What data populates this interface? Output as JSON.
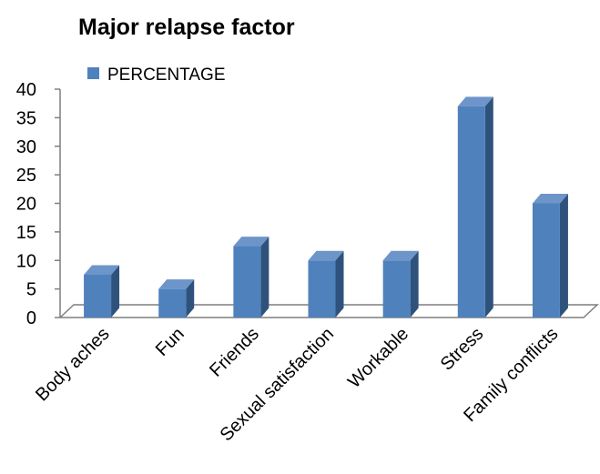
{
  "chart_data": {
    "type": "bar",
    "title": "Major relapse factor",
    "categories": [
      "Body aches",
      "Fun",
      "Friends",
      "Sexual satisfaction",
      "Workable",
      "Stress",
      "Family conflicts"
    ],
    "series": [
      {
        "name": "PERCENTAGE",
        "values": [
          7.5,
          5,
          12.5,
          10,
          10,
          37,
          20
        ]
      }
    ],
    "ylim": [
      0,
      40
    ],
    "yticks": [
      "0",
      "5",
      "10",
      "15",
      "20",
      "25",
      "30",
      "35",
      "40"
    ],
    "grid": false,
    "legend_position": "top-left",
    "style": "3d-column",
    "colors": {
      "front": "#4f81bd",
      "side": "#2f527c",
      "top": "#6d95c9"
    }
  }
}
